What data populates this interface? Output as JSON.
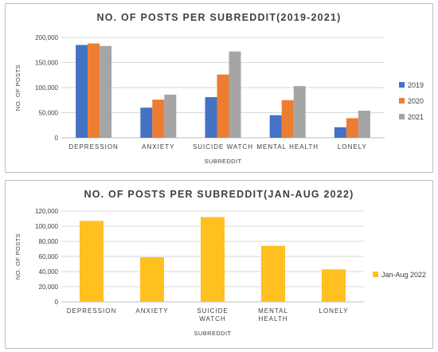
{
  "chart_data": [
    {
      "type": "bar",
      "title": "NO. OF POSTS PER SUBREDDIT(2019-2021)",
      "xlabel": "SUBREDDIT",
      "ylabel": "NO. OF POSTS",
      "categories": [
        "DEPRESSION",
        "ANXIETY",
        "SUICIDE WATCH",
        "MENTAL HEALTH",
        "LONELY"
      ],
      "ylim": [
        0,
        200000
      ],
      "yticks": [
        "0",
        "50,000",
        "100,000",
        "150,000",
        "200,000"
      ],
      "gridlines": true,
      "legend_position": "right",
      "series": [
        {
          "name": "2019",
          "color": "#4472C4",
          "values": [
            185000,
            60000,
            81000,
            45000,
            21000
          ]
        },
        {
          "name": "2020",
          "color": "#ED7D31",
          "values": [
            188000,
            76000,
            126000,
            75000,
            39000
          ]
        },
        {
          "name": "2021",
          "color": "#A5A5A5",
          "values": [
            183000,
            86000,
            172000,
            103000,
            54000
          ]
        }
      ]
    },
    {
      "type": "bar",
      "title": "NO. OF POSTS PER SUBREDDIT(JAN-AUG 2022)",
      "xlabel": "SUBREDDIT",
      "ylabel": "NO. OF POSTS",
      "categories": [
        "DEPRESSION",
        "ANXIETY",
        "SUICIDE WATCH",
        "MENTAL HEALTH",
        "LONELY"
      ],
      "ylim": [
        0,
        120000
      ],
      "yticks": [
        "0",
        "20,000",
        "40,000",
        "60,000",
        "80,000",
        "100,000",
        "120,000"
      ],
      "gridlines": true,
      "legend_position": "right",
      "series": [
        {
          "name": "Jan-Aug 2022",
          "color": "#FFC020",
          "values": [
            107000,
            59000,
            112000,
            74000,
            43000
          ]
        }
      ]
    }
  ]
}
